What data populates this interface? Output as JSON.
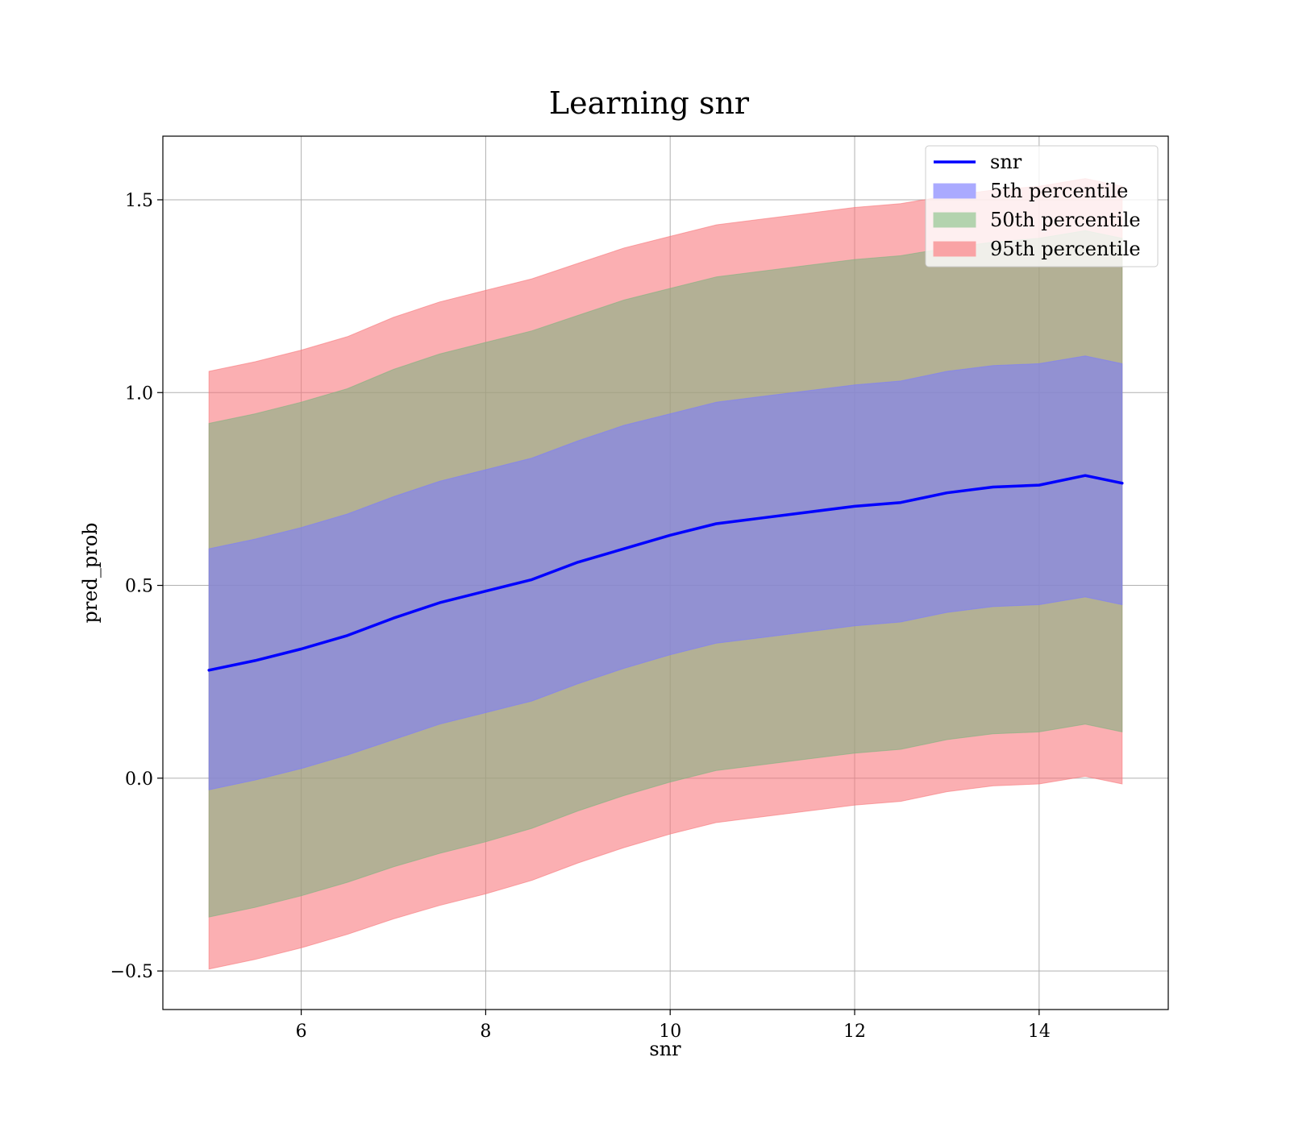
{
  "chart_data": {
    "type": "area",
    "title": "Learning snr",
    "xlabel": "snr",
    "ylabel": "pred_prob",
    "xlim": [
      4.5,
      15.4
    ],
    "ylim": [
      -0.6,
      1.665
    ],
    "x_ticks": [
      6,
      8,
      10,
      12,
      14
    ],
    "x_tick_labels": [
      "6",
      "8",
      "10",
      "12",
      "14"
    ],
    "y_ticks": [
      -0.5,
      0.0,
      0.5,
      1.0,
      1.5
    ],
    "y_tick_labels": [
      "−0.5",
      "0.0",
      "0.5",
      "1.0",
      "1.5"
    ],
    "grid": true,
    "legend_position": "top-right",
    "x": [
      5.0,
      5.5,
      6.0,
      6.5,
      7.0,
      7.5,
      8.0,
      8.5,
      9.0,
      9.5,
      10.0,
      10.5,
      11.0,
      11.5,
      12.0,
      12.5,
      13.0,
      13.5,
      14.0,
      14.5,
      14.9
    ],
    "line": {
      "name": "snr",
      "color": "#0000ff",
      "values": [
        0.28,
        0.305,
        0.335,
        0.37,
        0.415,
        0.455,
        0.485,
        0.515,
        0.56,
        0.595,
        0.63,
        0.66,
        0.675,
        0.69,
        0.705,
        0.715,
        0.74,
        0.755,
        0.76,
        0.785,
        0.765
      ]
    },
    "bands": [
      {
        "name": "95th percentile",
        "color": "#f8767a",
        "opacity": 0.58,
        "lower": [
          -0.495,
          -0.47,
          -0.44,
          -0.405,
          -0.365,
          -0.33,
          -0.3,
          -0.265,
          -0.22,
          -0.18,
          -0.145,
          -0.115,
          -0.1,
          -0.085,
          -0.07,
          -0.06,
          -0.035,
          -0.02,
          -0.015,
          0.005,
          -0.015
        ],
        "upper": [
          1.055,
          1.08,
          1.11,
          1.145,
          1.195,
          1.235,
          1.265,
          1.295,
          1.335,
          1.375,
          1.405,
          1.435,
          1.45,
          1.465,
          1.48,
          1.49,
          1.51,
          1.525,
          1.535,
          1.555,
          1.535
        ]
      },
      {
        "name": "50th percentile",
        "color": "#7fb27f",
        "opacity": 0.58,
        "lower": [
          -0.36,
          -0.335,
          -0.305,
          -0.27,
          -0.23,
          -0.195,
          -0.165,
          -0.13,
          -0.085,
          -0.045,
          -0.01,
          0.02,
          0.035,
          0.05,
          0.065,
          0.075,
          0.1,
          0.115,
          0.12,
          0.14,
          0.12
        ],
        "upper": [
          0.92,
          0.945,
          0.975,
          1.01,
          1.06,
          1.1,
          1.13,
          1.16,
          1.2,
          1.24,
          1.27,
          1.3,
          1.315,
          1.33,
          1.345,
          1.355,
          1.375,
          1.39,
          1.4,
          1.42,
          1.4
        ]
      },
      {
        "name": "5th percentile",
        "color": "#7b7bff",
        "opacity": 0.58,
        "lower": [
          -0.03,
          -0.005,
          0.025,
          0.06,
          0.1,
          0.14,
          0.17,
          0.2,
          0.245,
          0.285,
          0.32,
          0.35,
          0.365,
          0.38,
          0.395,
          0.405,
          0.43,
          0.445,
          0.45,
          0.47,
          0.45
        ],
        "upper": [
          0.595,
          0.62,
          0.65,
          0.685,
          0.73,
          0.77,
          0.8,
          0.83,
          0.875,
          0.915,
          0.945,
          0.975,
          0.99,
          1.005,
          1.02,
          1.03,
          1.055,
          1.07,
          1.075,
          1.095,
          1.075
        ]
      }
    ],
    "legend": [
      {
        "label": "snr",
        "kind": "line",
        "color": "#0000ff"
      },
      {
        "label": "5th percentile",
        "kind": "patch",
        "color": "#aaaaff"
      },
      {
        "label": "50th percentile",
        "kind": "patch",
        "color": "#b3d3ae"
      },
      {
        "label": "95th percentile",
        "kind": "patch",
        "color": "#f9a3a5"
      }
    ]
  }
}
